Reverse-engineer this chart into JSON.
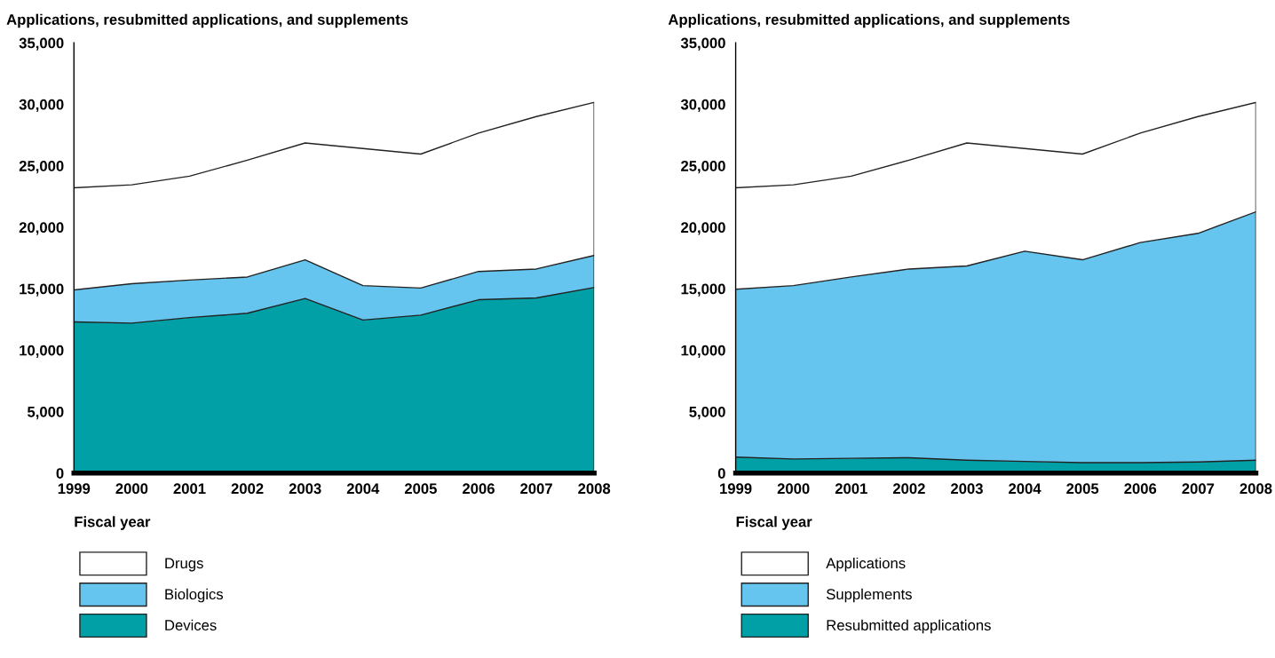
{
  "chart_data": [
    {
      "type": "area",
      "stacked": true,
      "ylabel": "Applications, resubmitted applications, and supplements",
      "xlabel": "Fiscal year",
      "categories": [
        "1999",
        "2000",
        "2001",
        "2002",
        "2003",
        "2004",
        "2005",
        "2006",
        "2007",
        "2008"
      ],
      "ylim": [
        0,
        35000
      ],
      "yticks": [
        0,
        {
          "value": 5000,
          "label": "5,000"
        },
        {
          "value": 10000,
          "label": "10,000"
        },
        {
          "value": 15000,
          "label": "15,000"
        },
        {
          "value": 20000,
          "label": "20,000"
        },
        {
          "value": 25000,
          "label": "25,000"
        },
        {
          "value": 30000,
          "label": "30,000"
        },
        {
          "value": 35000,
          "label": "35,000"
        }
      ],
      "grid": false,
      "legend": "bottom",
      "series": [
        {
          "name": "Devices",
          "color": "#00a0a6",
          "values": [
            12300,
            12200,
            12650,
            13000,
            14200,
            12450,
            12850,
            14100,
            14250,
            15100
          ]
        },
        {
          "name": "Biologics",
          "color": "#66c5ef",
          "values": [
            2600,
            3200,
            3050,
            2950,
            3150,
            2800,
            2200,
            2300,
            2350,
            2600
          ]
        },
        {
          "name": "Drugs",
          "color": "#ffffff",
          "values": [
            8300,
            8050,
            8450,
            9500,
            9500,
            11150,
            10900,
            11250,
            12400,
            12450
          ]
        }
      ]
    },
    {
      "type": "area",
      "stacked": true,
      "ylabel": "Applications, resubmitted applications, and supplements",
      "xlabel": "Fiscal year",
      "categories": [
        "1999",
        "2000",
        "2001",
        "2002",
        "2003",
        "2004",
        "2005",
        "2006",
        "2007",
        "2008"
      ],
      "ylim": [
        0,
        35000
      ],
      "yticks": [
        0,
        {
          "value": 5000,
          "label": "5,000"
        },
        {
          "value": 10000,
          "label": "10,000"
        },
        {
          "value": 15000,
          "label": "15,000"
        },
        {
          "value": 20000,
          "label": "20,000"
        },
        {
          "value": 25000,
          "label": "25,000"
        },
        {
          "value": 30000,
          "label": "30,000"
        },
        {
          "value": 35000,
          "label": "35,000"
        }
      ],
      "grid": false,
      "legend": "bottom",
      "series": [
        {
          "name": "Resubmitted applications",
          "color": "#00a0a6",
          "values": [
            1300,
            1150,
            1200,
            1250,
            1050,
            950,
            850,
            850,
            900,
            1050
          ]
        },
        {
          "name": "Supplements",
          "color": "#66c5ef",
          "values": [
            13650,
            14100,
            14750,
            15350,
            15800,
            17100,
            16500,
            17900,
            18600,
            20200
          ]
        },
        {
          "name": "Applications",
          "color": "#ffffff",
          "values": [
            8250,
            8200,
            8200,
            8850,
            10000,
            8350,
            8600,
            8900,
            9500,
            8900
          ]
        }
      ]
    }
  ]
}
